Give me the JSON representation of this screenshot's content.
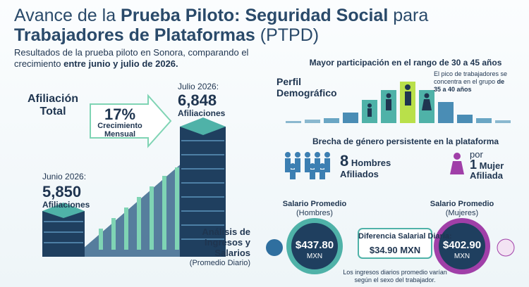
{
  "header": {
    "title_line1_plain": "Avance de la",
    "title_line1_bold": "Prueba Piloto: Seguridad Social",
    "title_line1_end": "para",
    "title_line2_bold": "Trabajadores de Plataformas",
    "title_line2_plain": "(PTPD)",
    "subtitle_plain": "Resultados de la prueba piloto en Sonora, comparando el crecimiento",
    "subtitle_bold": "entre junio y julio de 2026."
  },
  "affiliation": {
    "title": "Afiliación Total",
    "growth": "17%",
    "growth_label": "Crecimiento Mensual",
    "july_label": "Julio 2026:",
    "july_value": "6,848",
    "july_unit": "Afiliaciones",
    "june_label": "Junio 2026:",
    "june_value": "5,850",
    "june_unit": "Afiliaciones"
  },
  "demographics": {
    "heading": "Mayor participación en el rango de 30 a 45 años",
    "title": "Perfil Demográfico",
    "note": "El pico de trabajadores se concentra en el grupo",
    "note_bold": "de 35 a 40 años"
  },
  "gender": {
    "heading": "Brecha de género persistente en la plataforma",
    "men_count": "8",
    "men_label1": "Hombres",
    "men_label2": "Afiliados",
    "by": "por",
    "women_count": "1",
    "women_label1": "Mujer",
    "women_label2": "Afiliada"
  },
  "income": {
    "title": "Análisis de Ingresos y Salarios",
    "subtitle": "(Promedio Diario)",
    "men_label": "Salario Promedio",
    "men_sub": "(Hombres)",
    "men_value": "$437.80",
    "men_unit": "MXN",
    "diff_label": "Diferencia Salarial Diaria:",
    "diff_value": "$34.90 MXN",
    "women_label": "Salario Promedio",
    "women_sub": "(Mujeres)",
    "women_value": "$402.90",
    "women_unit": "MXN",
    "footnote": "Los ingresos diarios promedio varían según el sexo del trabajador."
  }
}
